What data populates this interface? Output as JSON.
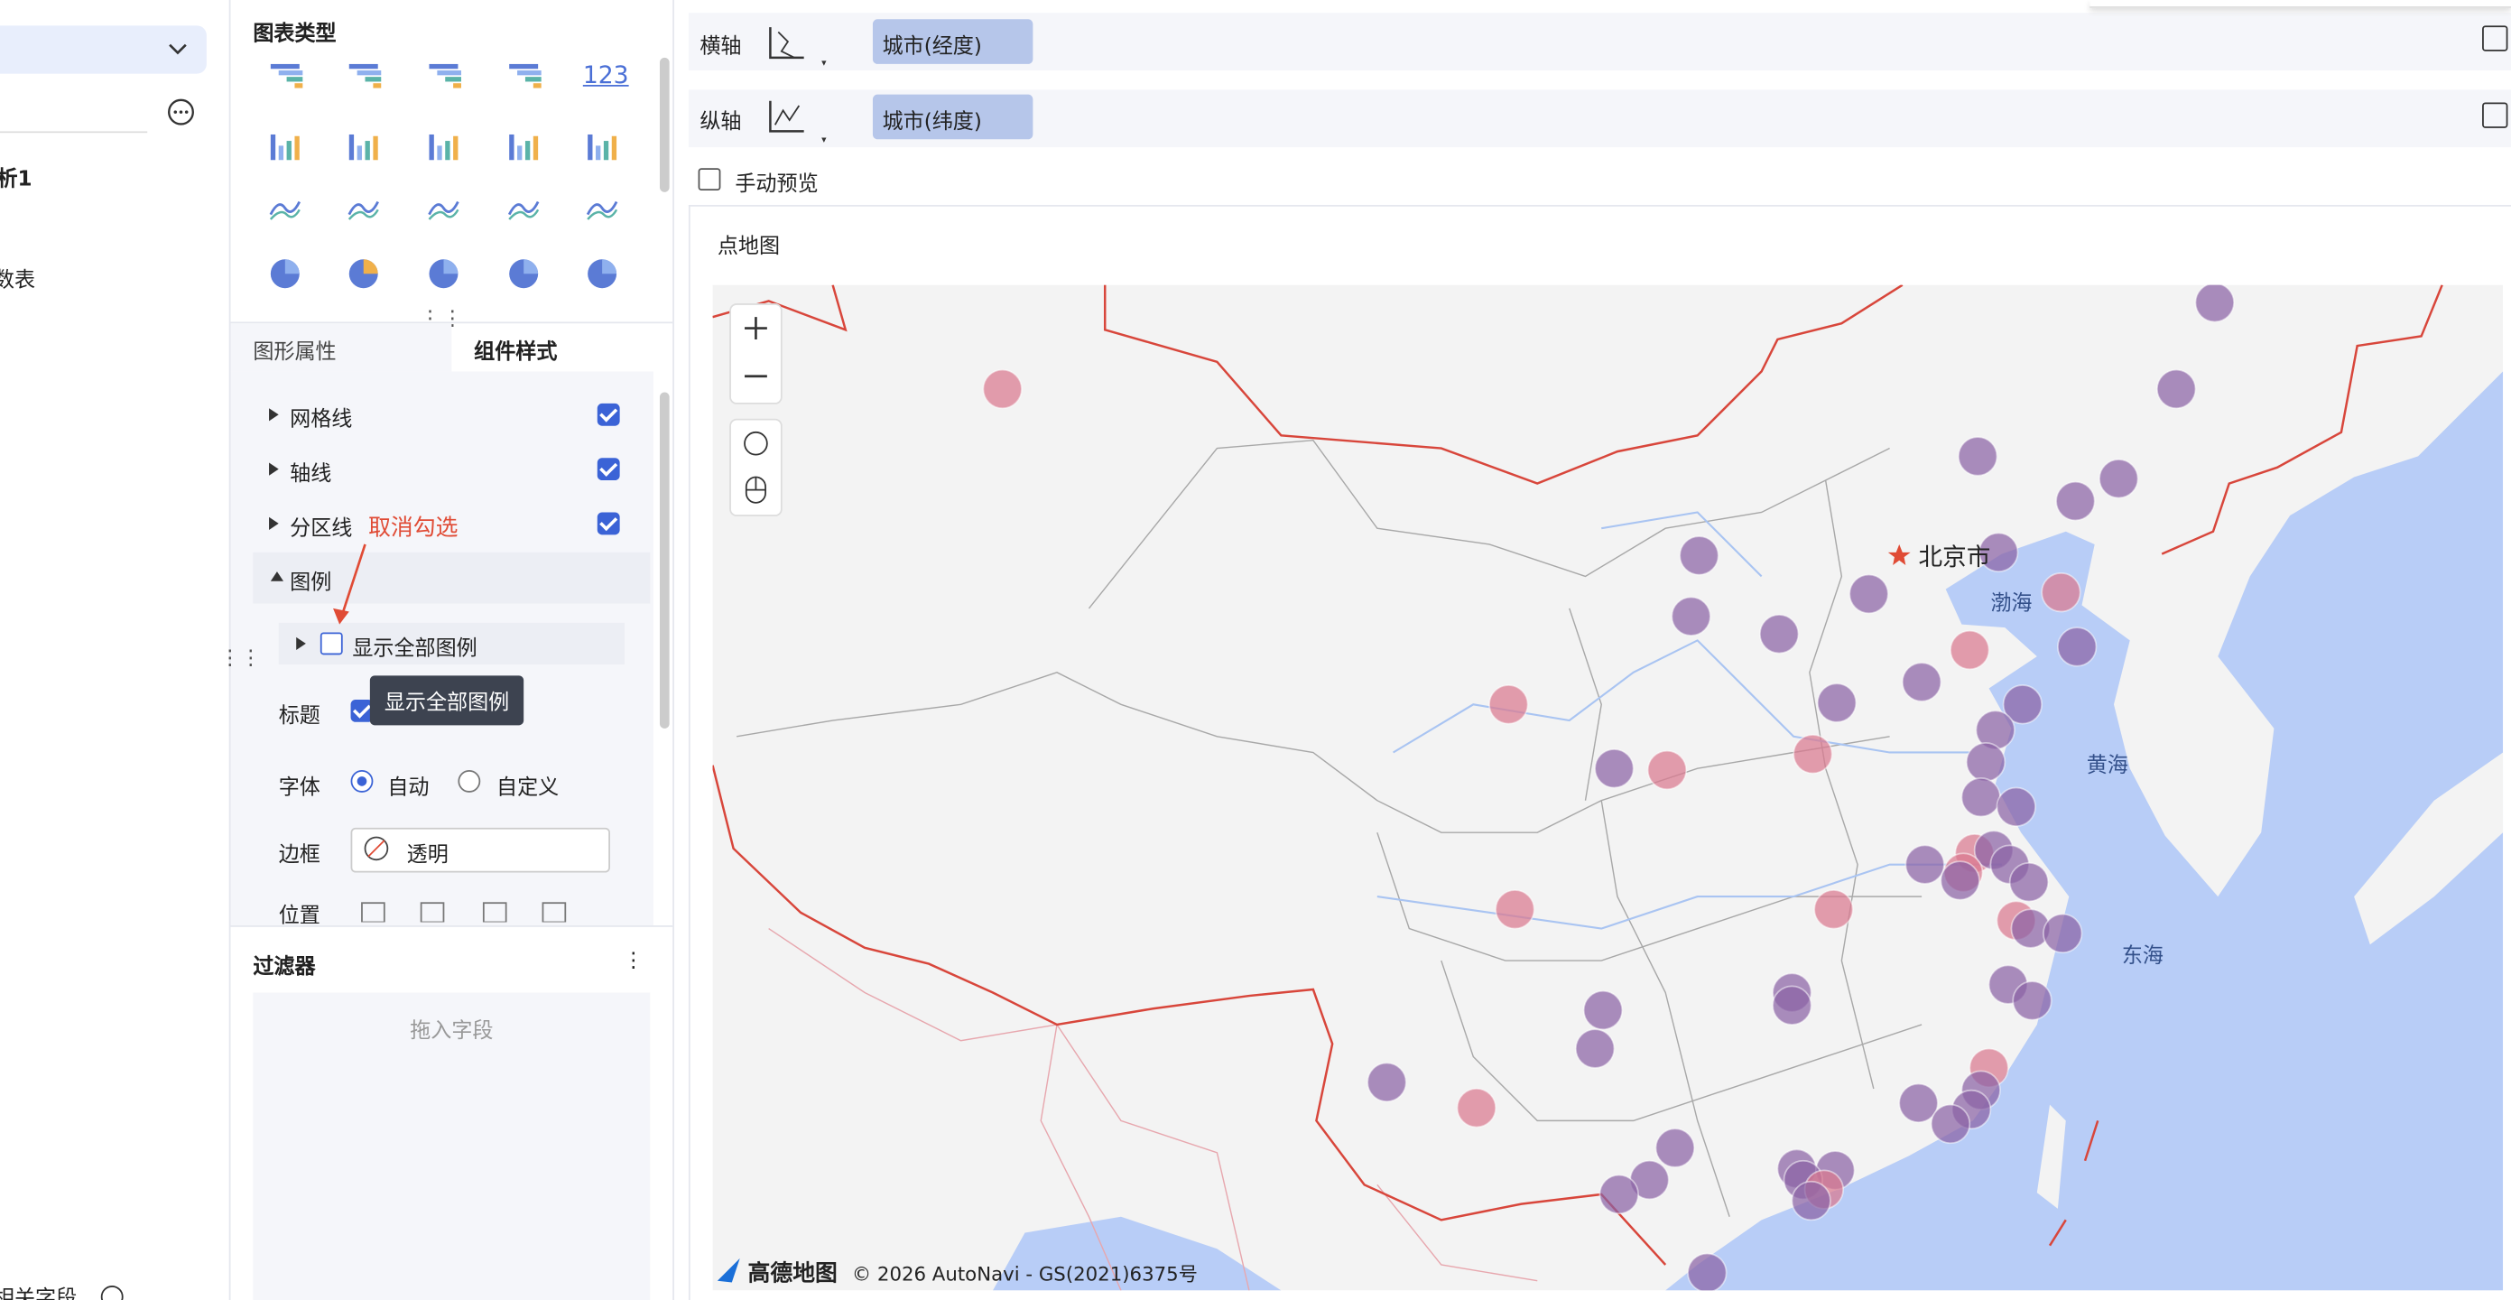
{
  "sidebar": {
    "items": [
      "析1",
      "数表"
    ],
    "footer": "相关字段"
  },
  "chart_types": {
    "title": "图表类型",
    "number_icon": "123"
  },
  "tabs": [
    "图形属性",
    "组件样式"
  ],
  "options": {
    "gridlines": "网格线",
    "axis": "轴线",
    "partition": "分区线",
    "legend": "图例",
    "show_all_legend": "显示全部图例",
    "title": "标题",
    "font": "字体",
    "font_auto": "自动",
    "font_custom": "自定义",
    "border": "边框",
    "border_value": "透明",
    "position": "位置"
  },
  "annotation": "取消勾选",
  "tooltip": "显示全部图例",
  "filter": {
    "title": "过滤器",
    "placeholder": "拖入字段"
  },
  "shelves": [
    {
      "label": "横轴",
      "field": "城市(经度)"
    },
    {
      "label": "纵轴",
      "field": "城市(纬度)"
    }
  ],
  "manual_preview": "手动预览",
  "chart": {
    "title": "点地图",
    "labels": [
      "北京市",
      "渤海",
      "黄海",
      "东海"
    ],
    "attribution": {
      "brand": "高德地图",
      "text": "© 2026 AutoNavi - GS(2021)6375号"
    }
  }
}
